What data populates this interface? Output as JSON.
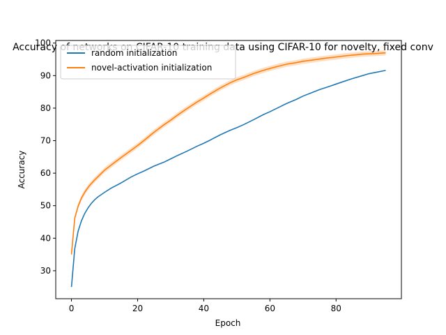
{
  "chart_data": {
    "type": "line",
    "title": "Accuracy of networks on CIFAR-10 training data using CIFAR-10 for novelty, fixed conv",
    "xlabel": "Epoch",
    "ylabel": "Accuracy",
    "xlim": [
      -4.75,
      99.75
    ],
    "ylim": [
      21.4,
      100.8
    ],
    "xticks": [
      0,
      20,
      40,
      60,
      80
    ],
    "yticks": [
      30,
      40,
      50,
      60,
      70,
      80,
      90,
      100
    ],
    "grid": false,
    "legend_position": "top-left",
    "series": [
      {
        "name": "random initialization",
        "color": "#1f77b4",
        "x": [
          0,
          1,
          2,
          3,
          4,
          5,
          6,
          7,
          8,
          10,
          12,
          15,
          18,
          20,
          22,
          25,
          28,
          30,
          32,
          35,
          38,
          40,
          42,
          45,
          48,
          50,
          52,
          55,
          58,
          60,
          63,
          65,
          68,
          70,
          73,
          75,
          78,
          80,
          82,
          85,
          88,
          90,
          92,
          95
        ],
        "y": [
          25.0,
          36.8,
          42.1,
          45.3,
          47.6,
          49.3,
          50.7,
          51.8,
          52.7,
          54.1,
          55.4,
          57.0,
          58.8,
          59.8,
          60.7,
          62.2,
          63.4,
          64.4,
          65.4,
          66.8,
          68.3,
          69.2,
          70.2,
          71.8,
          73.2,
          74.0,
          74.9,
          76.4,
          78.0,
          78.9,
          80.4,
          81.4,
          82.7,
          83.7,
          84.9,
          85.7,
          86.7,
          87.4,
          88.1,
          89.1,
          90.0,
          90.6,
          91.0,
          91.6
        ],
        "band": null
      },
      {
        "name": "novel-activation initialization",
        "color": "#ff7f0e",
        "x": [
          0,
          1,
          2,
          3,
          4,
          5,
          6,
          7,
          8,
          10,
          12,
          15,
          18,
          20,
          22,
          25,
          28,
          30,
          32,
          35,
          38,
          40,
          42,
          45,
          48,
          50,
          52,
          55,
          58,
          60,
          63,
          65,
          68,
          70,
          73,
          75,
          78,
          80,
          82,
          85,
          88,
          90,
          92,
          95
        ],
        "y": [
          35.0,
          46.2,
          49.8,
          52.3,
          54.1,
          55.6,
          56.8,
          57.9,
          58.9,
          60.9,
          62.5,
          64.8,
          67.0,
          68.5,
          70.1,
          72.6,
          74.9,
          76.3,
          77.8,
          79.9,
          81.9,
          83.1,
          84.4,
          86.2,
          87.8,
          88.7,
          89.4,
          90.6,
          91.6,
          92.2,
          93.0,
          93.5,
          94.0,
          94.4,
          94.8,
          95.1,
          95.5,
          95.7,
          96.0,
          96.3,
          96.6,
          96.7,
          96.8,
          97.0
        ],
        "band": 0.8
      }
    ]
  }
}
